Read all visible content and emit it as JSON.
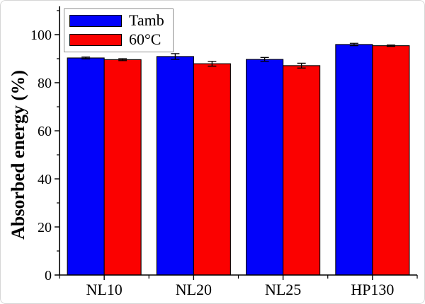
{
  "chart_data": {
    "type": "bar",
    "title": "",
    "xlabel": "",
    "ylabel": "Absorbed energy (%)",
    "categories": [
      "NL10",
      "NL20",
      "NL25",
      "HP130"
    ],
    "series": [
      {
        "name": "Tamb",
        "color": "#0202fa",
        "values": [
          90.3,
          90.9,
          89.7,
          95.9
        ],
        "errors": [
          0.4,
          1.2,
          0.8,
          0.5
        ]
      },
      {
        "name": "60°C",
        "color": "#fb0100",
        "values": [
          89.6,
          87.9,
          87.1,
          95.4
        ],
        "errors": [
          0.4,
          1.0,
          1.0,
          0.3
        ]
      }
    ],
    "ylim": [
      0,
      112
    ],
    "yticks_major": [
      0,
      20,
      40,
      60,
      80,
      100
    ],
    "yticks_minor": [
      10,
      30,
      50,
      70,
      90,
      110
    ],
    "grid": false,
    "legend_position": "top-left",
    "bar_edge_color": "#000000",
    "axis_color": "#000000"
  }
}
